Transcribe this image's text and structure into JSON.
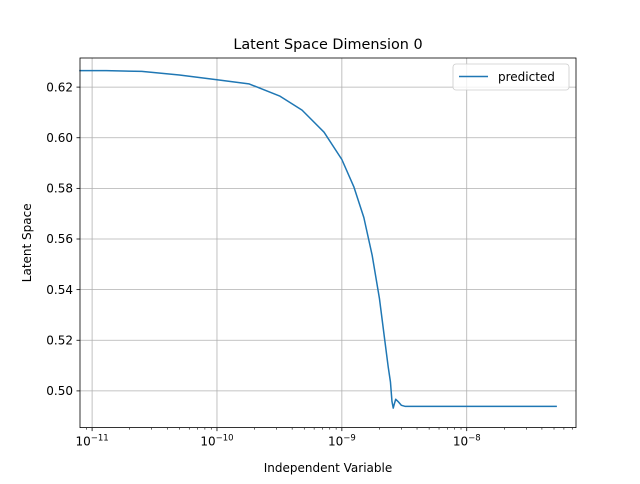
{
  "chart_data": {
    "type": "line",
    "title": "Latent Space Dimension 0",
    "xlabel": "Independent Variable",
    "ylabel": "Latent Space",
    "xscale": "log",
    "xlim": [
      8e-12,
      7.5e-08
    ],
    "ylim": [
      0.4855,
      0.6315
    ],
    "grid": true,
    "legend": "top-right",
    "x_ticks": [
      {
        "value": 1e-11,
        "base": "10",
        "exp": "−11"
      },
      {
        "value": 1e-10,
        "base": "10",
        "exp": "−10"
      },
      {
        "value": 1e-09,
        "base": "10",
        "exp": "−9"
      },
      {
        "value": 1e-08,
        "base": "10",
        "exp": "−8"
      }
    ],
    "y_ticks": [
      {
        "value": 0.5,
        "label": "0.50"
      },
      {
        "value": 0.52,
        "label": "0.52"
      },
      {
        "value": 0.54,
        "label": "0.54"
      },
      {
        "value": 0.56,
        "label": "0.56"
      },
      {
        "value": 0.58,
        "label": "0.58"
      },
      {
        "value": 0.6,
        "label": "0.60"
      },
      {
        "value": 0.62,
        "label": "0.62"
      }
    ],
    "series": [
      {
        "name": "predicted",
        "color": "#1f77b4",
        "x": [
          8e-12,
          1.3e-11,
          2.5e-11,
          5e-11,
          1e-10,
          1.8e-10,
          3.2e-10,
          4.8e-10,
          7.2e-10,
          1e-09,
          1.25e-09,
          1.5e-09,
          1.75e-09,
          2e-09,
          2.2e-09,
          2.35e-09,
          2.45e-09,
          2.52e-09,
          2.58e-09,
          2.63e-09,
          2.7e-09,
          2.82e-09,
          3e-09,
          3.2e-09,
          3.6e-09,
          5e-09,
          1e-08,
          3e-08,
          5.2e-08
        ],
        "y": [
          0.6265,
          0.6265,
          0.6262,
          0.6248,
          0.6229,
          0.6213,
          0.6164,
          0.6109,
          0.6022,
          0.5914,
          0.5805,
          0.5685,
          0.5535,
          0.5365,
          0.5205,
          0.5095,
          0.5035,
          0.4958,
          0.4932,
          0.4948,
          0.4967,
          0.4958,
          0.4943,
          0.4939,
          0.4939,
          0.4939,
          0.4939,
          0.4939,
          0.4939
        ]
      }
    ]
  }
}
